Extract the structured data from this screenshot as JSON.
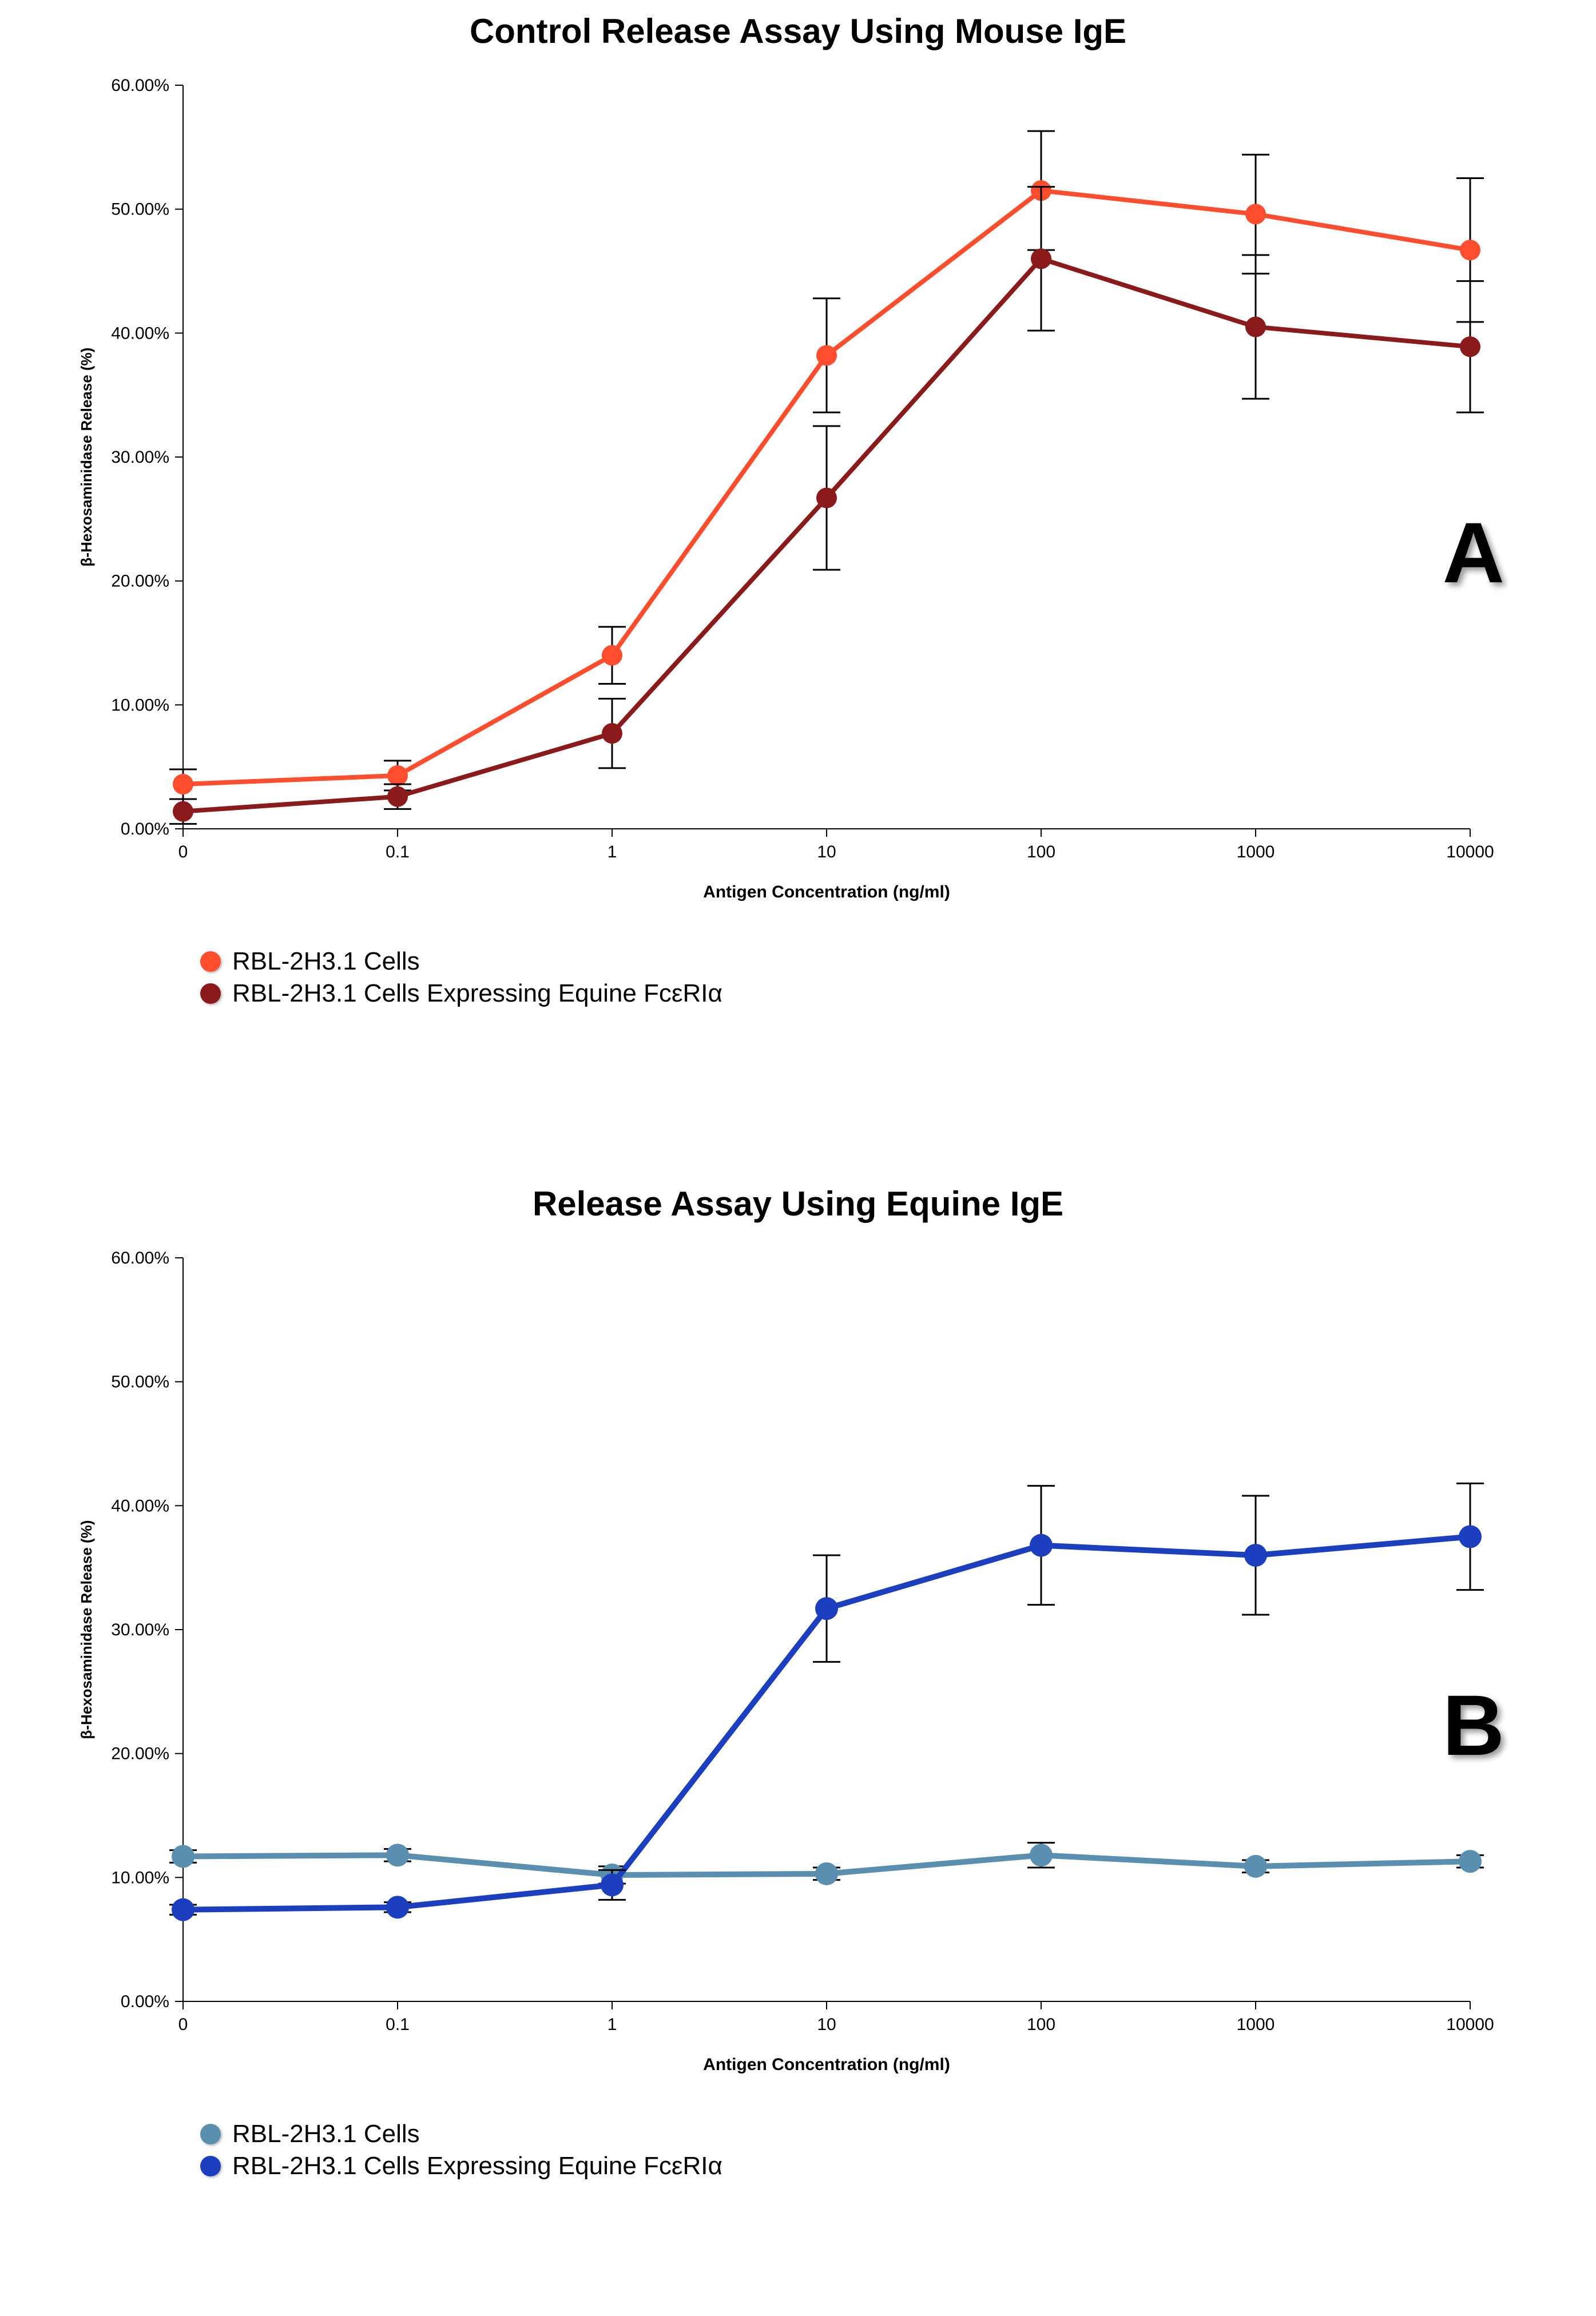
{
  "layout": {
    "aspect_ratio": "2790:4049",
    "subplots": "2 rows x 1 col",
    "panel_letter_fontsize": 150,
    "title_fontsize": 60,
    "legend_fontsize": 44,
    "tick_fontsize": 30,
    "axis_title_fontsize": 30
  },
  "chartA": {
    "type": "line",
    "title": "Control Release Assay Using Mouse IgE",
    "panel_letter": "A",
    "xlabel": "Antigen Concentration (ng/ml)",
    "ylabel": "β-Hexosaminidase Release (%)",
    "xscale": "log",
    "x_ticklabels": [
      "0",
      "0.1",
      "1",
      "10",
      "100",
      "1000",
      "10000"
    ],
    "ylim": [
      0,
      60
    ],
    "ytick_step": 10,
    "y_ticklabels": [
      "0.00%",
      "10.00%",
      "20.00%",
      "30.00%",
      "40.00%",
      "50.00%",
      "60.00%"
    ],
    "background_color": "#ffffff",
    "axis_color": "#000000",
    "line_width": 8,
    "marker_radius": 18,
    "error_bar_color": "#000000",
    "error_cap_width": 24,
    "series": [
      {
        "name": "RBL-2H3.1 Cells",
        "color": "#ff4d2e",
        "x_index": [
          0,
          1,
          2,
          3,
          4,
          5,
          6
        ],
        "y": [
          3.6,
          4.3,
          14.0,
          38.2,
          51.5,
          49.6,
          46.7
        ],
        "yerr": [
          1.2,
          1.2,
          2.3,
          4.6,
          4.8,
          4.8,
          5.8
        ]
      },
      {
        "name": "RBL-2H3.1 Cells Expressing Equine FcεRIα",
        "color": "#8b1a1a",
        "x_index": [
          0,
          1,
          2,
          3,
          4,
          5,
          6
        ],
        "y": [
          1.4,
          2.6,
          7.7,
          26.7,
          46.0,
          40.5,
          38.9
        ],
        "yerr": [
          1.0,
          1.0,
          2.8,
          5.8,
          5.8,
          5.8,
          5.3
        ]
      }
    ]
  },
  "chartB": {
    "type": "line",
    "title": "Release Assay Using Equine IgE",
    "panel_letter": "B",
    "xlabel": "Antigen Concentration (ng/ml)",
    "ylabel": "β-Hexosaminidase Release (%)",
    "xscale": "log",
    "x_ticklabels": [
      "0",
      "0.1",
      "1",
      "10",
      "100",
      "1000",
      "10000"
    ],
    "ylim": [
      0,
      60
    ],
    "ytick_step": 10,
    "y_ticklabels": [
      "0.00%",
      "10.00%",
      "20.00%",
      "30.00%",
      "40.00%",
      "50.00%",
      "60.00%"
    ],
    "background_color": "#ffffff",
    "axis_color": "#000000",
    "line_width": 10,
    "marker_radius": 20,
    "error_bar_color": "#000000",
    "error_cap_width": 24,
    "series": [
      {
        "name": "RBL-2H3.1 Cells",
        "color": "#5a8fb0",
        "x_index": [
          0,
          1,
          2,
          3,
          4,
          5,
          6
        ],
        "y": [
          11.7,
          11.8,
          10.2,
          10.3,
          11.8,
          10.9,
          11.3
        ],
        "yerr": [
          0.5,
          0.5,
          0.7,
          0.5,
          1.0,
          0.5,
          0.5
        ]
      },
      {
        "name": "RBL-2H3.1 Cells Expressing Equine FcεRIα",
        "color": "#1b3fbf",
        "x_index": [
          0,
          1,
          2,
          3,
          4,
          5,
          6
        ],
        "y": [
          7.4,
          7.6,
          9.4,
          31.7,
          36.8,
          36.0,
          37.5
        ],
        "yerr": [
          0.4,
          0.4,
          1.2,
          4.3,
          4.8,
          4.8,
          4.3
        ]
      }
    ]
  }
}
